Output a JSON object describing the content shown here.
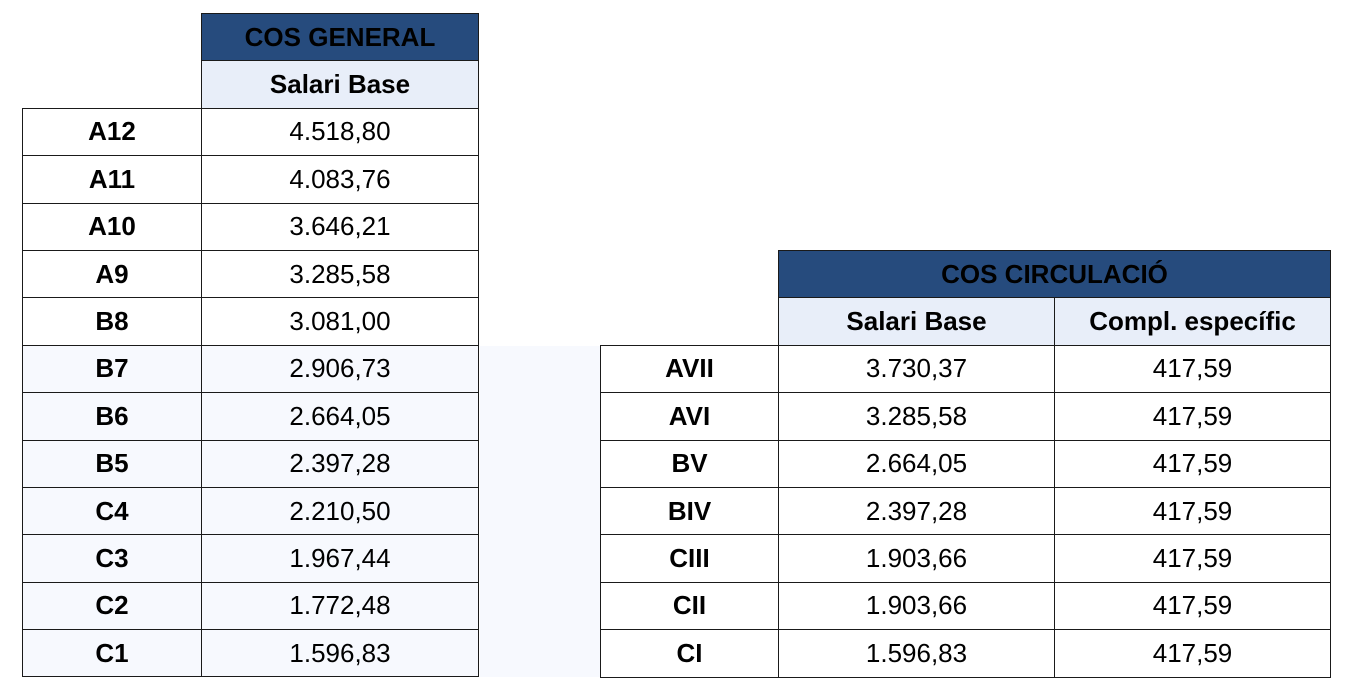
{
  "cos_general": {
    "title": "COS GENERAL",
    "column": "Salari Base",
    "rows": [
      {
        "grade": "A12",
        "salari": "4.518,80"
      },
      {
        "grade": "A11",
        "salari": "4.083,76"
      },
      {
        "grade": "A10",
        "salari": "3.646,21"
      },
      {
        "grade": "A9",
        "salari": "3.285,58"
      },
      {
        "grade": "B8",
        "salari": "3.081,00"
      },
      {
        "grade": "B7",
        "salari": "2.906,73"
      },
      {
        "grade": "B6",
        "salari": "2.664,05"
      },
      {
        "grade": "B5",
        "salari": "2.397,28"
      },
      {
        "grade": "C4",
        "salari": "2.210,50"
      },
      {
        "grade": "C3",
        "salari": "1.967,44"
      },
      {
        "grade": "C2",
        "salari": "1.772,48"
      },
      {
        "grade": "C1",
        "salari": "1.596,83"
      }
    ]
  },
  "cos_circulacio": {
    "title": "COS CIRCULACIÓ",
    "columns": [
      "Salari Base",
      "Compl. específic"
    ],
    "rows": [
      {
        "grade": "AVII",
        "salari": "3.730,37",
        "compl": "417,59"
      },
      {
        "grade": "AVI",
        "salari": "3.285,58",
        "compl": "417,59"
      },
      {
        "grade": "BV",
        "salari": "2.664,05",
        "compl": "417,59"
      },
      {
        "grade": "BIV",
        "salari": "2.397,28",
        "compl": "417,59"
      },
      {
        "grade": "CIII",
        "salari": "1.903,66",
        "compl": "417,59"
      },
      {
        "grade": "CII",
        "salari": "1.903,66",
        "compl": "417,59"
      },
      {
        "grade": "CI",
        "salari": "1.596,83",
        "compl": "417,59"
      }
    ]
  },
  "colors": {
    "header_fill": "#264b7d",
    "subheader_fill": "#e8eef9",
    "row_shade": "#f7f9fe",
    "border": "#1a1a1a"
  }
}
